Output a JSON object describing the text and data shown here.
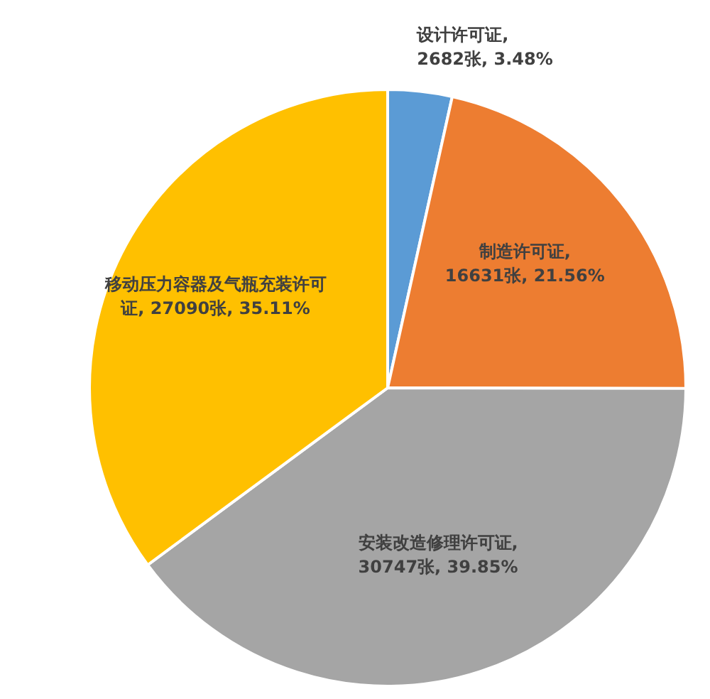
{
  "chart_data": {
    "type": "pie",
    "categories": [
      "设计许可证",
      "制造许可证",
      "安装改造修理许可证",
      "移动压力容器及气瓶充装许可证"
    ],
    "values": [
      2682,
      16631,
      30747,
      27090
    ],
    "colors": [
      "#5b9bd5",
      "#ed7d31",
      "#a5a5a5",
      "#ffc000"
    ],
    "value_labels": [
      ", 2682张, 3.48%",
      ", 16631张, 21.56%",
      ", 30747张, 39.85%",
      ", 27090张, 35.11%"
    ]
  }
}
